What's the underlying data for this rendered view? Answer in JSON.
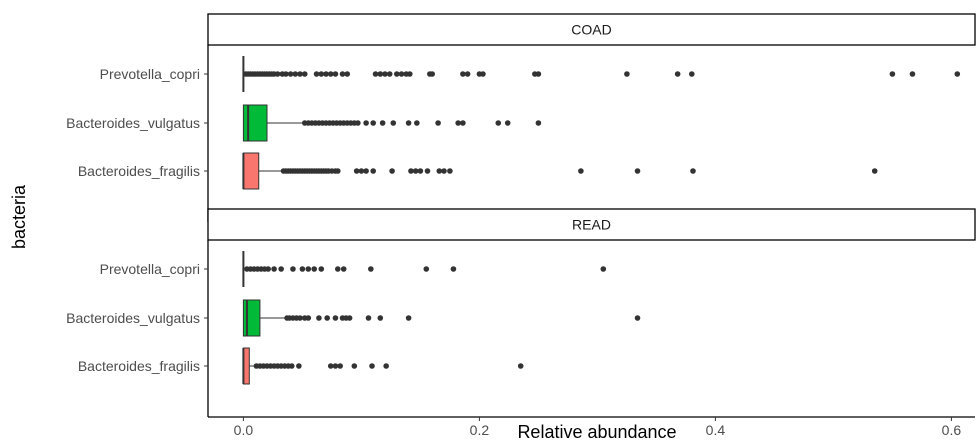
{
  "chart_data": {
    "type": "boxplot",
    "xlabel": "Relative abundance",
    "ylabel": "bacteria",
    "xlim": [
      -0.03,
      0.62
    ],
    "x_ticks": [
      0.0,
      0.2,
      0.4,
      0.6
    ],
    "x_tick_labels": [
      "0.0",
      "0.2",
      "0.4",
      "0.6"
    ],
    "grid": false,
    "categories": [
      "Prevotella_copri",
      "Bacteroides_vulgatus",
      "Bacteroides_fragilis"
    ],
    "colors": {
      "Prevotella_copri": "#619CFF",
      "Bacteroides_vulgatus": "#00BA38",
      "Bacteroides_fragilis": "#F8766D"
    },
    "panels": [
      {
        "name": "COAD",
        "boxes": [
          {
            "category": "Prevotella_copri",
            "min": 0,
            "q1": 0,
            "median": 0,
            "q3": 0,
            "whisker_high": 0,
            "outliers": [
              0.002,
              0.004,
              0.006,
              0.008,
              0.01,
              0.012,
              0.014,
              0.016,
              0.018,
              0.02,
              0.022,
              0.024,
              0.026,
              0.029,
              0.033,
              0.036,
              0.04,
              0.044,
              0.048,
              0.052,
              0.062,
              0.066,
              0.07,
              0.074,
              0.078,
              0.084,
              0.088,
              0.112,
              0.116,
              0.12,
              0.124,
              0.13,
              0.134,
              0.138,
              0.141,
              0.158,
              0.16,
              0.186,
              0.19,
              0.2,
              0.203,
              0.247,
              0.25,
              0.325,
              0.368,
              0.38,
              0.55,
              0.567,
              0.605
            ]
          },
          {
            "category": "Bacteroides_vulgatus",
            "min": 0,
            "q1": 0,
            "median": 0.004,
            "q3": 0.02,
            "whisker_high": 0.05,
            "outliers": [
              0.052,
              0.055,
              0.058,
              0.061,
              0.064,
              0.067,
              0.07,
              0.073,
              0.076,
              0.079,
              0.082,
              0.085,
              0.088,
              0.091,
              0.094,
              0.097,
              0.104,
              0.11,
              0.118,
              0.127,
              0.14,
              0.147,
              0.165,
              0.182,
              0.186,
              0.216,
              0.224,
              0.25
            ]
          },
          {
            "category": "Bacteroides_fragilis",
            "min": 0,
            "q1": 0,
            "median": 0,
            "q3": 0.013,
            "whisker_high": 0.033,
            "outliers": [
              0.034,
              0.036,
              0.038,
              0.04,
              0.042,
              0.044,
              0.046,
              0.048,
              0.05,
              0.052,
              0.054,
              0.056,
              0.058,
              0.06,
              0.062,
              0.064,
              0.066,
              0.068,
              0.07,
              0.072,
              0.075,
              0.078,
              0.08,
              0.096,
              0.1,
              0.104,
              0.11,
              0.126,
              0.142,
              0.146,
              0.15,
              0.156,
              0.166,
              0.17,
              0.175,
              0.286,
              0.334,
              0.381,
              0.535
            ]
          }
        ]
      },
      {
        "name": "READ",
        "boxes": [
          {
            "category": "Prevotella_copri",
            "min": 0,
            "q1": 0,
            "median": 0,
            "q3": 0,
            "whisker_high": 0,
            "outliers": [
              0.003,
              0.006,
              0.009,
              0.012,
              0.015,
              0.018,
              0.021,
              0.026,
              0.032,
              0.042,
              0.05,
              0.055,
              0.06,
              0.066,
              0.08,
              0.085,
              0.108,
              0.155,
              0.178,
              0.305
            ]
          },
          {
            "category": "Bacteroides_vulgatus",
            "min": 0,
            "q1": 0,
            "median": 0.003,
            "q3": 0.014,
            "whisker_high": 0.035,
            "outliers": [
              0.037,
              0.039,
              0.042,
              0.045,
              0.048,
              0.052,
              0.055,
              0.064,
              0.071,
              0.078,
              0.084,
              0.087,
              0.09,
              0.106,
              0.116,
              0.14,
              0.334
            ]
          },
          {
            "category": "Bacteroides_fragilis",
            "min": 0,
            "q1": 0,
            "median": 0,
            "q3": 0.005,
            "whisker_high": 0.01,
            "outliers": [
              0.011,
              0.014,
              0.017,
              0.02,
              0.023,
              0.026,
              0.029,
              0.032,
              0.035,
              0.038,
              0.041,
              0.047,
              0.074,
              0.078,
              0.082,
              0.094,
              0.109,
              0.121,
              0.235
            ]
          }
        ]
      }
    ]
  }
}
